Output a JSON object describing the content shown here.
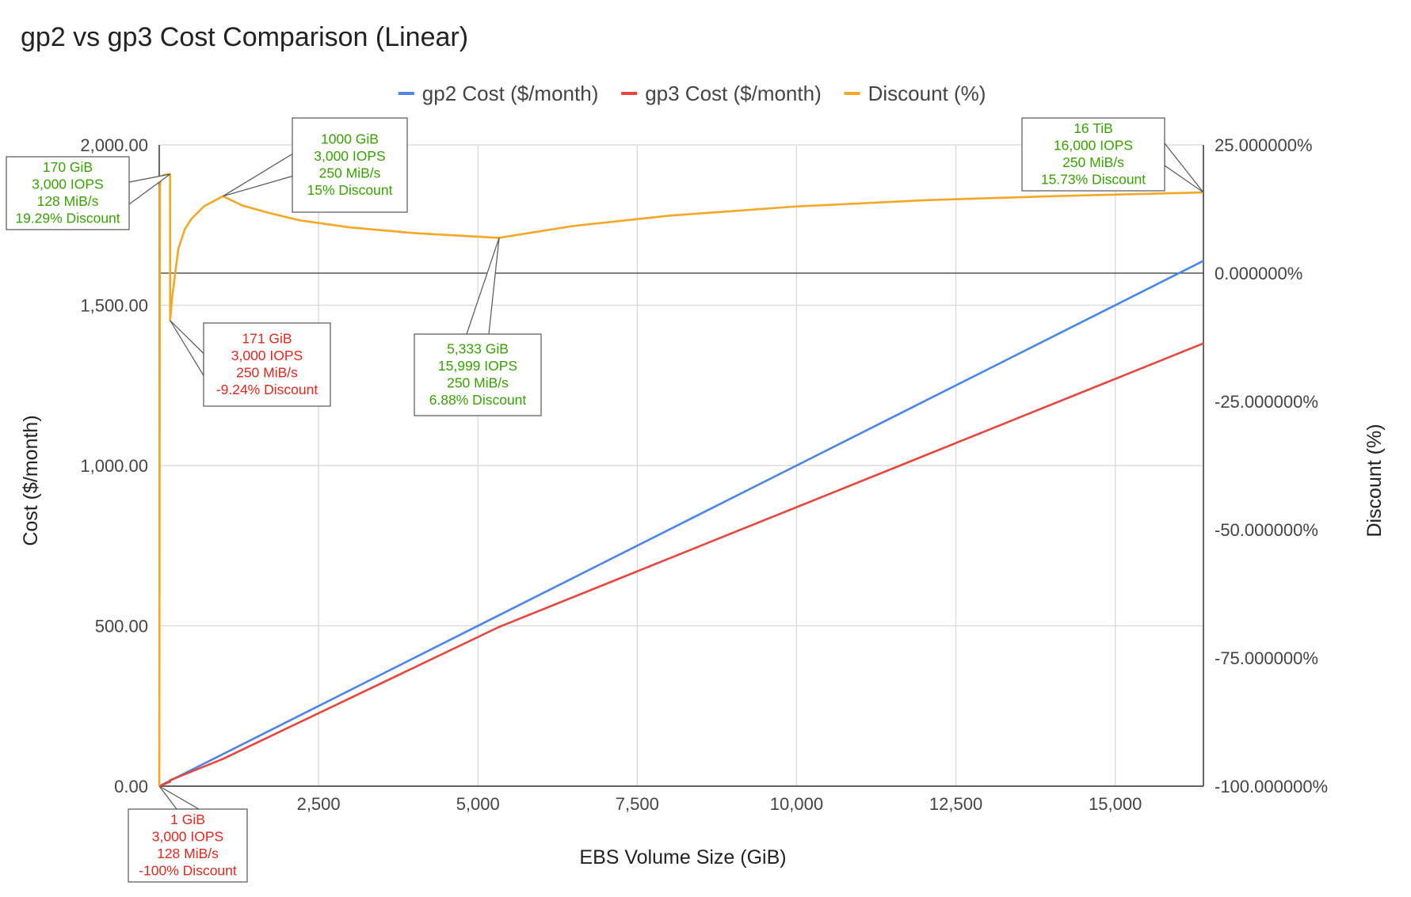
{
  "chart_data": {
    "type": "line",
    "title": "gp2 vs gp3 Cost Comparison (Linear)",
    "xlabel": "EBS Volume Size (GiB)",
    "ylabel": "Cost ($/month)",
    "y2label": "Discount (%)",
    "xlim": [
      0,
      16384
    ],
    "ylim": [
      0,
      2000
    ],
    "y2lim": [
      -100,
      25
    ],
    "x_ticks": [
      2500,
      5000,
      7500,
      10000,
      12500,
      15000
    ],
    "x_tick_labels": [
      "2,500",
      "5,000",
      "7,500",
      "10,000",
      "12,500",
      "15,000"
    ],
    "y_ticks": [
      0,
      500,
      1000,
      1500,
      2000
    ],
    "y_tick_labels": [
      "0.00",
      "500.00",
      "1,000.00",
      "1,500.00",
      "2,000.00"
    ],
    "y2_ticks": [
      -100,
      -75,
      -50,
      -25,
      0,
      25
    ],
    "y2_tick_labels": [
      "-100.000000%",
      "-75.000000%",
      "-50.000000%",
      "-25.000000%",
      "0.000000%",
      "25.000000%"
    ],
    "grid": true,
    "legend_position": "top",
    "series": [
      {
        "name": "gp2 Cost ($/month)",
        "axis": "left",
        "color": "#4a86e8",
        "x": [
          1,
          16384
        ],
        "y": [
          0.1,
          1638.4
        ]
      },
      {
        "name": "gp3 Cost ($/month)",
        "axis": "left",
        "color": "#e8453c",
        "x": [
          1,
          170,
          171,
          1000,
          5333,
          16384
        ],
        "y": [
          0.2,
          13.6,
          18.68,
          85.0,
          496.6,
          1381.0
        ]
      },
      {
        "name": "Discount (%)",
        "axis": "right",
        "color": "#f5a623",
        "x": [
          1,
          10,
          25,
          50,
          100,
          170,
          171,
          200,
          300,
          400,
          500,
          700,
          1000,
          1300,
          1700,
          2200,
          3000,
          4000,
          5333,
          6500,
          8000,
          10000,
          12000,
          14000,
          16384
        ],
        "y": [
          -100,
          16.8,
          18.4,
          19.0,
          19.2,
          19.29,
          -9.24,
          -5.0,
          4.8,
          8.5,
          10.5,
          13.0,
          15.0,
          13.2,
          11.8,
          10.3,
          8.9,
          7.8,
          6.88,
          9.2,
          11.2,
          13.0,
          14.2,
          15.0,
          15.73
        ]
      }
    ],
    "annotations": [
      {
        "x": 170,
        "series": "Discount (%)",
        "lines": [
          "170 GiB",
          "3,000 IOPS",
          "128 MiB/s",
          "19.29% Discount"
        ],
        "color": "#38a300"
      },
      {
        "x": 1000,
        "series": "Discount (%)",
        "lines": [
          "1000 GiB",
          "3,000 IOPS",
          "250 MiB/s",
          "15% Discount"
        ],
        "color": "#38a300"
      },
      {
        "x": 171,
        "series": "Discount (%)",
        "lines": [
          "171 GiB",
          "3,000 IOPS",
          "250 MiB/s",
          "-9.24% Discount"
        ],
        "color": "#e8261c"
      },
      {
        "x": 5333,
        "series": "Discount (%)",
        "lines": [
          "5,333 GiB",
          "15,999 IOPS",
          "250 MiB/s",
          "6.88% Discount"
        ],
        "color": "#38a300"
      },
      {
        "x": 16384,
        "series": "Discount (%)",
        "lines": [
          "16 TiB",
          "16,000 IOPS",
          "250 MiB/s",
          "15.73% Discount"
        ],
        "color": "#38a300"
      },
      {
        "x": 1,
        "series": "Discount (%)",
        "lines": [
          "1 GiB",
          "3,000 IOPS",
          "128 MiB/s",
          "-100% Discount"
        ],
        "color": "#e8261c"
      }
    ]
  }
}
